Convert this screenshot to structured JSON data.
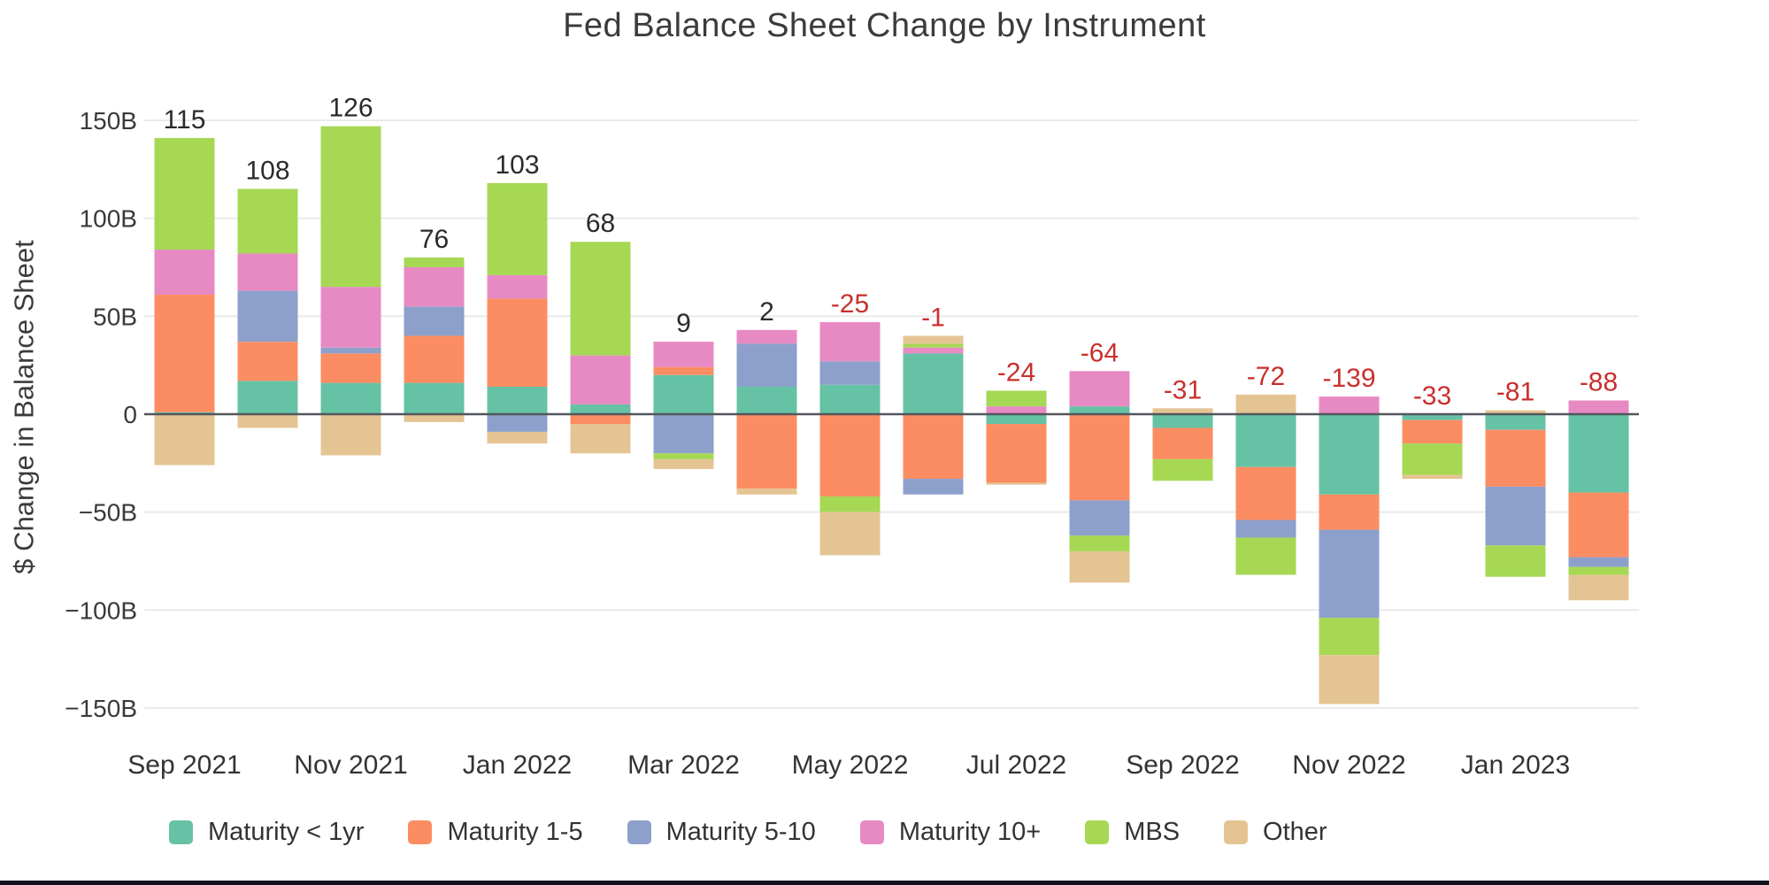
{
  "title": "Fed Balance Sheet Change by Instrument",
  "y_axis": {
    "title": "$ Change in Balance Sheet",
    "ticks": [
      {
        "label": "150B",
        "value": 150
      },
      {
        "label": "100B",
        "value": 100
      },
      {
        "label": "50B",
        "value": 50
      },
      {
        "label": "0",
        "value": 0
      },
      {
        "label": "−50B",
        "value": -50
      },
      {
        "label": "−100B",
        "value": -100
      },
      {
        "label": "−150B",
        "value": -150
      }
    ]
  },
  "x_axis": {
    "labels": [
      "Sep 2021",
      "Nov 2021",
      "Jan 2022",
      "Mar 2022",
      "May 2022",
      "Jul 2022",
      "Sep 2022",
      "Nov 2022",
      "Jan 2023"
    ],
    "label_every": 2
  },
  "data_label_colors": {
    "positive": "#2b2b2b",
    "negative": "#c8302e"
  },
  "grid_color": "#eaeaea",
  "zero_line_color": "#53565c",
  "text_color": "#3a3a3a",
  "chart_data": {
    "type": "bar",
    "stacked": true,
    "title": "Fed Balance Sheet Change by Instrument",
    "xlabel": "",
    "ylabel": "$ Change in Balance Sheet",
    "ylim": [
      -150,
      150
    ],
    "grid": true,
    "legend_position": "bottom",
    "units": "billions USD",
    "categories": [
      "Sep 2021",
      "Oct 2021",
      "Nov 2021",
      "Dec 2021",
      "Jan 2022",
      "Feb 2022",
      "Mar 2022",
      "Apr 2022",
      "May 2022",
      "Jun 2022",
      "Jul 2022",
      "Aug 2022",
      "Sep 2022",
      "Oct 2022",
      "Nov 2022",
      "Dec 2022",
      "Jan 2023",
      "Feb 2023"
    ],
    "series": [
      {
        "name": "Maturity < 1yr",
        "color": "#66c2a5",
        "values": [
          1,
          17,
          16,
          16,
          14,
          5,
          20,
          14,
          15,
          31,
          -5,
          4,
          -7,
          -27,
          -41,
          -3,
          -8,
          -40
        ]
      },
      {
        "name": "Maturity 1-5",
        "color": "#fc8d62",
        "values": [
          60,
          20,
          15,
          24,
          45,
          -5,
          4,
          -38,
          -42,
          -33,
          -30,
          -44,
          -16,
          -27,
          -18,
          -12,
          -29,
          -33
        ]
      },
      {
        "name": "Maturity 5-10",
        "color": "#8da0cb",
        "values": [
          0,
          26,
          3,
          15,
          -9,
          0,
          -20,
          22,
          12,
          -8,
          0,
          -18,
          0,
          -9,
          -45,
          0,
          -30,
          -5
        ]
      },
      {
        "name": "Maturity 10+",
        "color": "#e78ac3",
        "values": [
          23,
          19,
          31,
          20,
          12,
          25,
          13,
          7,
          20,
          3,
          4,
          18,
          0,
          0,
          9,
          0,
          0,
          7
        ]
      },
      {
        "name": "MBS",
        "color": "#a6d854",
        "values": [
          57,
          33,
          82,
          5,
          47,
          58,
          -3,
          0,
          -8,
          2,
          8,
          -8,
          -11,
          -19,
          -19,
          -16,
          -16,
          -4
        ]
      },
      {
        "name": "Other",
        "color": "#e5c494",
        "values": [
          -26,
          -7,
          -21,
          -4,
          -6,
          -15,
          -5,
          -3,
          -22,
          4,
          -1,
          -16,
          3,
          10,
          -25,
          -2,
          2,
          -13
        ]
      }
    ],
    "totals": [
      115,
      108,
      126,
      76,
      103,
      68,
      9,
      2,
      -25,
      -1,
      -24,
      -64,
      -31,
      -72,
      -139,
      -33,
      -81,
      -88
    ]
  }
}
